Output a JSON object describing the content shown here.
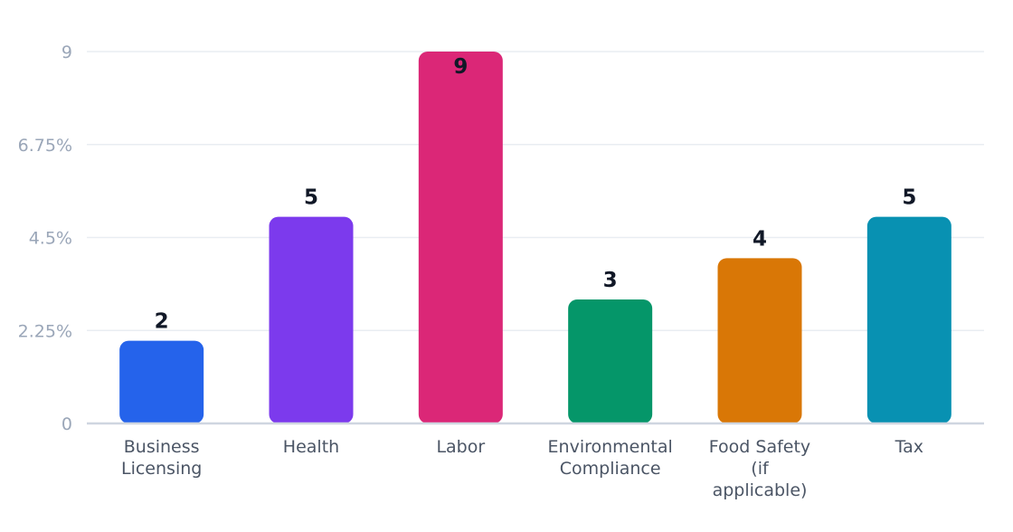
{
  "chart_data": {
    "type": "bar",
    "categories": [
      [
        "Business",
        "Licensing"
      ],
      [
        "Health"
      ],
      [
        "Labor"
      ],
      [
        "Environmental",
        "Compliance"
      ],
      [
        "Food Safety",
        "(if",
        "applicable)"
      ],
      [
        "Tax"
      ]
    ],
    "values": [
      2,
      5,
      9,
      3,
      4,
      5
    ],
    "data_labels": [
      "2",
      "5",
      "9",
      "3",
      "4",
      "5"
    ],
    "colors": [
      "#2563eb",
      "#7c3aed",
      "#db2777",
      "#059669",
      "#d97706",
      "#0891b2"
    ],
    "ylim": [
      0,
      9
    ],
    "yticks": [
      0,
      2.25,
      4.5,
      6.75,
      9
    ],
    "ytick_labels": [
      "0",
      "2.25%",
      "4.5%",
      "6.75%",
      "9"
    ],
    "grid": true,
    "title": "",
    "xlabel": "",
    "ylabel": ""
  }
}
